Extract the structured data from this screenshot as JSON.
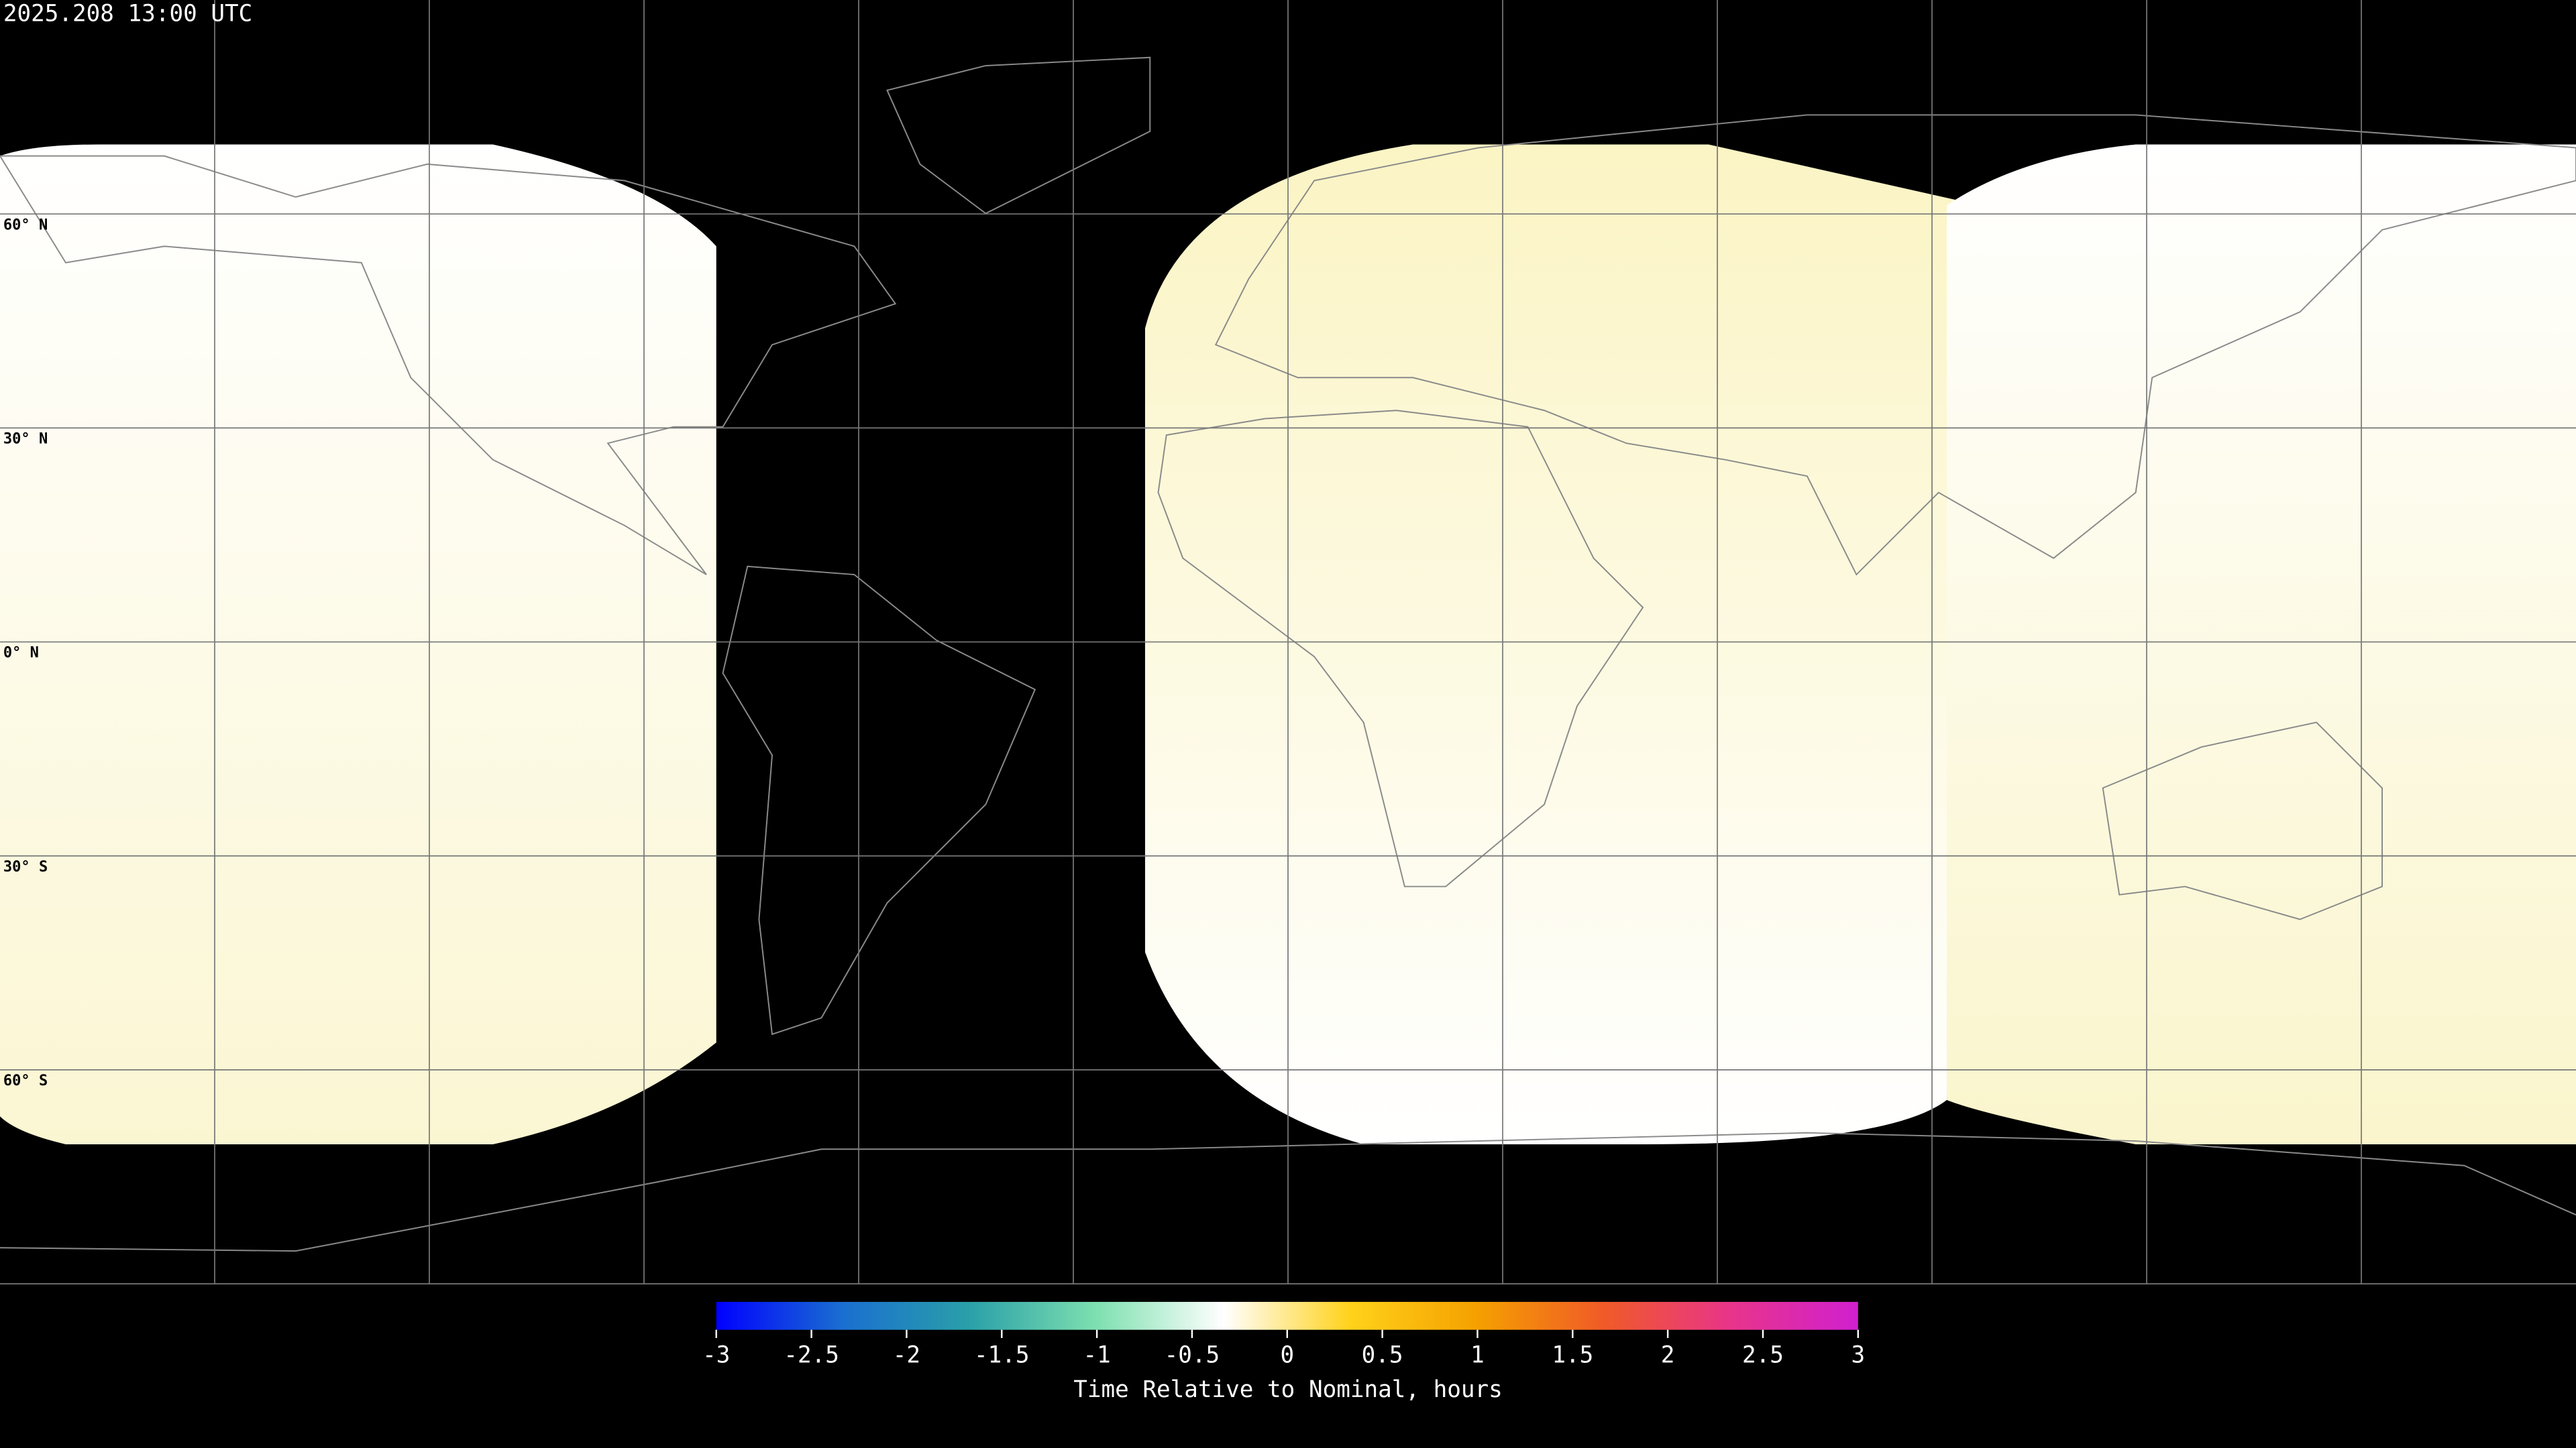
{
  "header": {
    "title": "2025.208 13:00 UTC"
  },
  "map": {
    "lat_labels": [
      "60° N",
      "30° N",
      "0° N",
      "30° S",
      "60° S"
    ]
  },
  "colorbar": {
    "min": -3,
    "max": 3,
    "ticks": [
      -3,
      -2.5,
      -2,
      -1.5,
      -1,
      -0.5,
      0,
      0.5,
      1,
      1.5,
      2,
      2.5,
      3
    ],
    "colors": [
      "#0000ff",
      "#1a6fd0",
      "#2aa0a8",
      "#7ee0b0",
      "#ffffff",
      "#ffd21a",
      "#f5a000",
      "#f05a28",
      "#e8348a",
      "#d020d0"
    ],
    "label": "Time Relative to Nominal, hours"
  }
}
